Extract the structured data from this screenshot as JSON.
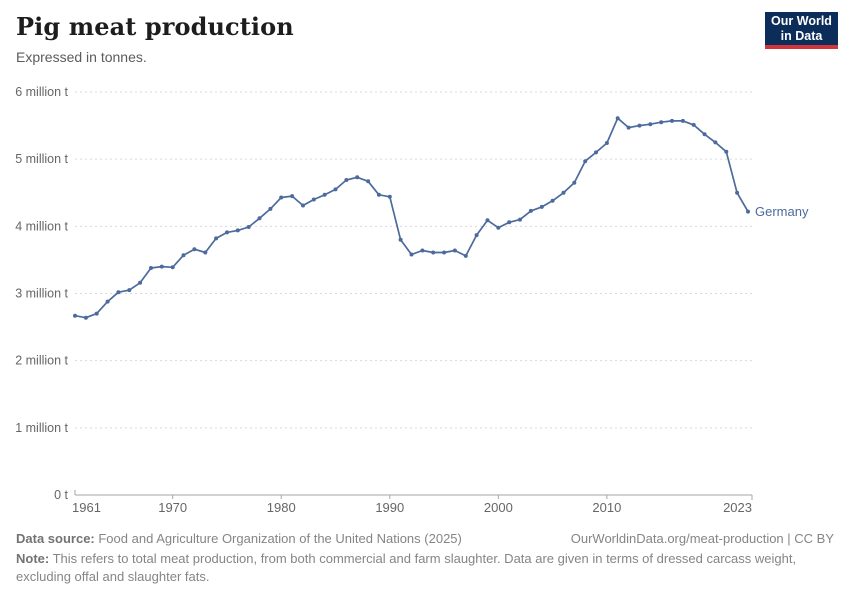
{
  "header": {
    "title": "Pig meat production",
    "subtitle": "Expressed in tonnes.",
    "logo_line1": "Our World",
    "logo_line2": "in Data"
  },
  "chart_data": {
    "type": "line",
    "title": "Pig meat production",
    "unit": "tonnes",
    "grid": "horizontal-dashed",
    "legend_position": "end-of-line-label",
    "xlim": [
      1961,
      2023
    ],
    "ylim": [
      0,
      6000000
    ],
    "x_ticks": [
      {
        "value": 1961,
        "label": "1961"
      },
      {
        "value": 1970,
        "label": "1970"
      },
      {
        "value": 1980,
        "label": "1980"
      },
      {
        "value": 1990,
        "label": "1990"
      },
      {
        "value": 2000,
        "label": "2000"
      },
      {
        "value": 2010,
        "label": "2010"
      },
      {
        "value": 2023,
        "label": "2023"
      }
    ],
    "y_ticks": [
      {
        "value": 0,
        "label": "0 t"
      },
      {
        "value": 1000000,
        "label": "1 million t"
      },
      {
        "value": 2000000,
        "label": "2 million t"
      },
      {
        "value": 3000000,
        "label": "3 million t"
      },
      {
        "value": 4000000,
        "label": "4 million t"
      },
      {
        "value": 5000000,
        "label": "5 million t"
      },
      {
        "value": 6000000,
        "label": "6 million t"
      }
    ],
    "series": [
      {
        "name": "Germany",
        "color": "#4c6a9c",
        "x": [
          1961,
          1962,
          1963,
          1964,
          1965,
          1966,
          1967,
          1968,
          1969,
          1970,
          1971,
          1972,
          1973,
          1974,
          1975,
          1976,
          1977,
          1978,
          1979,
          1980,
          1981,
          1982,
          1983,
          1984,
          1985,
          1986,
          1987,
          1988,
          1989,
          1990,
          1991,
          1992,
          1993,
          1994,
          1995,
          1996,
          1997,
          1998,
          1999,
          2000,
          2001,
          2002,
          2003,
          2004,
          2005,
          2006,
          2007,
          2008,
          2009,
          2010,
          2011,
          2012,
          2013,
          2014,
          2015,
          2016,
          2017,
          2018,
          2019,
          2020,
          2021,
          2022,
          2023
        ],
        "values": [
          2670000,
          2640000,
          2700000,
          2880000,
          3020000,
          3050000,
          3160000,
          3380000,
          3400000,
          3390000,
          3570000,
          3660000,
          3610000,
          3820000,
          3910000,
          3940000,
          3990000,
          4120000,
          4260000,
          4430000,
          4450000,
          4310000,
          4400000,
          4470000,
          4550000,
          4690000,
          4730000,
          4670000,
          4470000,
          4440000,
          3800000,
          3580000,
          3640000,
          3610000,
          3610000,
          3640000,
          3560000,
          3870000,
          4090000,
          3980000,
          4060000,
          4100000,
          4230000,
          4290000,
          4380000,
          4500000,
          4650000,
          4970000,
          5100000,
          5240000,
          5610000,
          5470000,
          5500000,
          5520000,
          5550000,
          5570000,
          5570000,
          5510000,
          5370000,
          5250000,
          5110000,
          4500000,
          4220000
        ]
      }
    ],
    "layout": {
      "x0": 75,
      "x1": 748,
      "axis_end": 752,
      "y_base": 495,
      "y_top": 92,
      "grid_color": "#d9d9d9",
      "axis_color": "#a6a6a6",
      "label_color": "#666666"
    }
  },
  "footer": {
    "datasource_label": "Data source:",
    "datasource_text": " Food and Agriculture Organization of the United Nations (2025)",
    "rights": "OurWorldinData.org/meat-production | CC BY",
    "note_label": "Note:",
    "note_text": " This refers to total meat production, from both commercial and farm slaughter. Data are given in terms of dressed carcass weight, excluding offal and slaughter fats."
  }
}
